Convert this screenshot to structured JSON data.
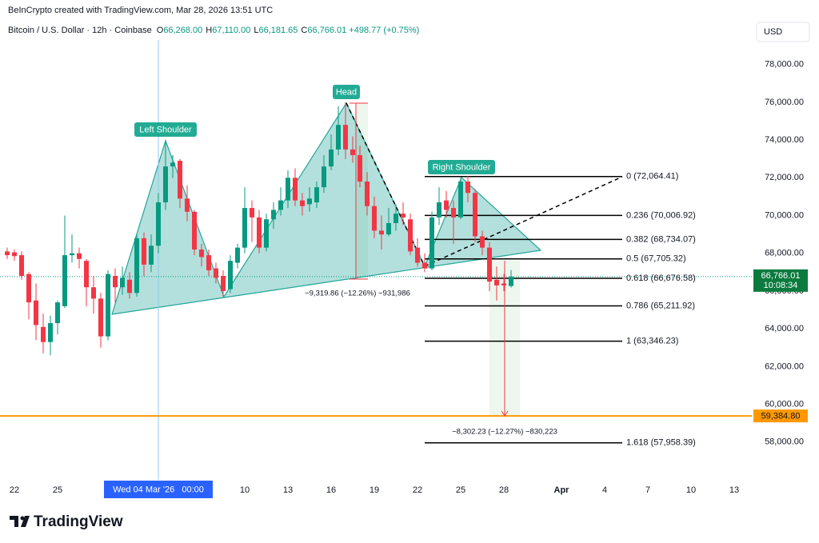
{
  "header": {
    "credit": "BeInCrypto created with TradingView.com, Mar 28, 2026 13:51 UTC",
    "symbol": "Bitcoin / U.S. Dollar · 12h · Coinbase",
    "ohlc": [
      {
        "key": "O",
        "value": "66,268.00"
      },
      {
        "key": "H",
        "value": "67,110.00"
      },
      {
        "key": "L",
        "value": "66,181.65"
      },
      {
        "key": "C",
        "value": "66,766.01"
      }
    ],
    "change": "+498.77 (+0.75%)"
  },
  "currency": "USD",
  "chart_data": {
    "type": "candlestick",
    "up_color": "#089981",
    "down_color": "#f23645",
    "open": [
      68100,
      68050,
      67900,
      66900,
      65500,
      64100,
      63300,
      64300,
      65200,
      67900,
      68000,
      67600,
      66200,
      65600,
      63600,
      66800,
      66200,
      66600,
      65900,
      68800,
      67400,
      68400,
      70700,
      72600,
      72900,
      70900,
      70200,
      68200,
      67900,
      67200,
      66800,
      66100,
      67500,
      68300,
      70400,
      69900,
      68300,
      69800,
      70300,
      70800,
      72000,
      70800,
      70600,
      70700,
      71500,
      72600,
      73500,
      74800,
      73500,
      73200,
      71800,
      70500,
      69200,
      69000,
      69600,
      70100,
      69800,
      68300,
      67500,
      67200,
      69900,
      70800,
      70400,
      69900,
      71800,
      71200,
      68900,
      68300,
      66600,
      66400,
      66268
    ],
    "high": [
      68300,
      68200,
      68100,
      67000,
      66400,
      64800,
      64700,
      65500,
      70000,
      69000,
      68300,
      67700,
      66800,
      65900,
      67100,
      67200,
      67300,
      67000,
      69000,
      69100,
      69000,
      71200,
      74000,
      73200,
      73000,
      71600,
      70300,
      68500,
      68200,
      67500,
      67100,
      67900,
      68500,
      71500,
      70800,
      70300,
      70100,
      70700,
      71500,
      72400,
      72500,
      71200,
      71500,
      71800,
      73200,
      74300,
      75800,
      76000,
      74200,
      73700,
      72300,
      71000,
      70000,
      70400,
      70600,
      70700,
      70100,
      68800,
      68000,
      70200,
      71500,
      71300,
      70800,
      72000,
      72100,
      71400,
      69200,
      68600,
      67300,
      66900,
      67110
    ],
    "low": [
      67700,
      67600,
      66600,
      64500,
      63400,
      62700,
      62600,
      63700,
      65100,
      67500,
      67200,
      65200,
      64800,
      63000,
      63400,
      65400,
      65800,
      65600,
      65700,
      66800,
      67000,
      68000,
      70300,
      72000,
      70400,
      69700,
      67900,
      67300,
      66800,
      66400,
      65700,
      65900,
      67200,
      68000,
      68600,
      68000,
      68100,
      69300,
      70000,
      70400,
      70500,
      70000,
      70200,
      70400,
      71200,
      72400,
      73200,
      73000,
      72800,
      71500,
      70000,
      68800,
      68200,
      68900,
      69200,
      69500,
      67900,
      67300,
      67000,
      67100,
      69500,
      69900,
      68500,
      69800,
      70700,
      68600,
      67900,
      66000,
      65500,
      66000,
      66181.65
    ],
    "close": [
      67900,
      67850,
      66800,
      65400,
      64200,
      63300,
      64300,
      65400,
      67900,
      68000,
      67700,
      66200,
      65600,
      63600,
      66900,
      66200,
      66700,
      65900,
      68800,
      67400,
      68400,
      70700,
      72600,
      72800,
      70900,
      70200,
      68200,
      67800,
      67100,
      66700,
      66000,
      67600,
      68300,
      70400,
      69900,
      68300,
      69800,
      70300,
      70800,
      72000,
      70800,
      70500,
      70900,
      71500,
      72600,
      73500,
      74800,
      73500,
      73200,
      71800,
      70500,
      69200,
      69000,
      69600,
      70100,
      69900,
      68100,
      67500,
      67200,
      69900,
      70700,
      70300,
      69900,
      71800,
      71200,
      68900,
      68300,
      66500,
      66300,
      66300,
      66766.01
    ],
    "xlim": [
      -1,
      103
    ],
    "xticks": [
      {
        "value": 1,
        "label": "22"
      },
      {
        "value": 7,
        "label": "25"
      },
      {
        "value": 33,
        "label": "10"
      },
      {
        "value": 39,
        "label": "13"
      },
      {
        "value": 45,
        "label": "16"
      },
      {
        "value": 51,
        "label": "19"
      },
      {
        "value": 57,
        "label": "22"
      },
      {
        "value": 63,
        "label": "25"
      },
      {
        "value": 69,
        "label": "28"
      },
      {
        "value": 77,
        "label": "Apr"
      },
      {
        "value": 83,
        "label": "4"
      },
      {
        "value": 89,
        "label": "7"
      },
      {
        "value": 95,
        "label": "10"
      },
      {
        "value": 101,
        "label": "13"
      }
    ],
    "ylim": [
      56000,
      79300
    ],
    "yticks": [
      {
        "value": 58000,
        "label": "58,000.00"
      },
      {
        "value": 60000,
        "label": "60,000.00"
      },
      {
        "value": 62000,
        "label": "62,000.00"
      },
      {
        "value": 64000,
        "label": "64,000.00"
      },
      {
        "value": 66000,
        "label": "66,000.00"
      },
      {
        "value": 68000,
        "label": "68,000.00"
      },
      {
        "value": 70000,
        "label": "70,000.00"
      },
      {
        "value": 72000,
        "label": "72,000.00"
      },
      {
        "value": 74000,
        "label": "74,000.00"
      },
      {
        "value": 76000,
        "label": "76,000.00"
      },
      {
        "value": 78000,
        "label": "78,000.00"
      }
    ],
    "crosshair": {
      "value": 21,
      "label": "Wed 04 Mar '26   00:00"
    },
    "annotations": [
      "Left Shoulder",
      "Head",
      "Right Shoulder"
    ],
    "measures": [
      "−9,319.86 (−12.26%) −931,986",
      "−8,302.23 (−12.27%) −830,223"
    ],
    "fib_levels": [
      {
        "value": 72064.41,
        "label": "0 (72,064.41)"
      },
      {
        "value": 70006.92,
        "label": "0.236 (70,006.92)"
      },
      {
        "value": 68734.07,
        "label": "0.382 (68,734.07)"
      },
      {
        "value": 67705.32,
        "label": "0.5 (67,705.32)"
      },
      {
        "value": 66676.58,
        "label": "0.618 (66,676.58)"
      },
      {
        "value": 65211.92,
        "label": "0.786 (65,211.92)"
      },
      {
        "value": 63346.23,
        "label": "1 (63,346.23)"
      },
      {
        "value": 57958.39,
        "label": "1.618 (57,958.39)"
      }
    ],
    "support": {
      "value": 59384.8,
      "label": "59,384.80",
      "color": "#ff9800"
    },
    "last_price": {
      "value": 66766.01,
      "label": "66,766.01",
      "countdown": "10:08:34"
    }
  },
  "footer": {
    "logo": "TradingView"
  }
}
